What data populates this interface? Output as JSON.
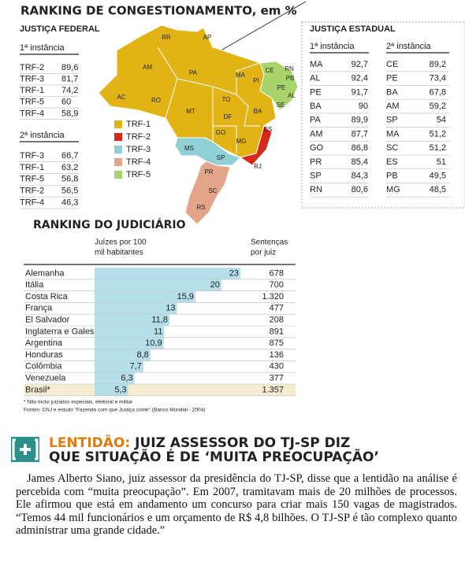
{
  "header": {
    "title": "RANKING DE CONGESTIONAMENTO, em %"
  },
  "federal": {
    "title": "JUSTIÇA FEDERAL",
    "tables": [
      {
        "heading": "1ª instância",
        "rows": [
          [
            "TRF-2",
            "89,6"
          ],
          [
            "TRF-3",
            "81,7"
          ],
          [
            "TRF-1",
            "74,2"
          ],
          [
            "TRF-5",
            "60"
          ],
          [
            "TRF-4",
            "58,9"
          ]
        ]
      },
      {
        "heading": "2ª instância",
        "rows": [
          [
            "TRF-3",
            "66,7"
          ],
          [
            "TRF-1",
            "63,2"
          ],
          [
            "TRF-5",
            "56,8"
          ],
          [
            "TRF-2",
            "56,5"
          ],
          [
            "TRF-4",
            "46,3"
          ]
        ]
      }
    ]
  },
  "map": {
    "legend": [
      {
        "label": "TRF-1",
        "color": "#e2b314"
      },
      {
        "label": "TRF-2",
        "color": "#d8281c"
      },
      {
        "label": "TRF-3",
        "color": "#8ed0d3"
      },
      {
        "label": "TRF-4",
        "color": "#e2a589"
      },
      {
        "label": "TRF-5",
        "color": "#a9d36b"
      }
    ],
    "states": [
      "RR",
      "AP",
      "AM",
      "PA",
      "MA",
      "CE",
      "RN",
      "PB",
      "PI",
      "PE",
      "AL",
      "SE",
      "AC",
      "RO",
      "TO",
      "BA",
      "MT",
      "GO",
      "DF",
      "MG",
      "MS",
      "ES",
      "RJ",
      "SP",
      "PR",
      "SC",
      "RS"
    ]
  },
  "estadual": {
    "title": "JUSTIÇA ESTADUAL",
    "tables": [
      {
        "heading": "1ª instância",
        "rows": [
          [
            "MA",
            "92,7"
          ],
          [
            "AL",
            "92,4"
          ],
          [
            "PE",
            "91,7"
          ],
          [
            "BA",
            "90"
          ],
          [
            "PA",
            "89,9"
          ],
          [
            "AM",
            "87,7"
          ],
          [
            "GO",
            "86,8"
          ],
          [
            "PR",
            "85,4"
          ],
          [
            "SP",
            "84,3"
          ],
          [
            "RN",
            "80,6"
          ]
        ]
      },
      {
        "heading": "2ª instância",
        "rows": [
          [
            "CE",
            "89,2"
          ],
          [
            "PE",
            "73,4"
          ],
          [
            "BA",
            "67,8"
          ],
          [
            "AM",
            "59,2"
          ],
          [
            "SP",
            "54"
          ],
          [
            "MA",
            "51,2"
          ],
          [
            "SC",
            "51,2"
          ],
          [
            "ES",
            "51"
          ],
          [
            "PB",
            "49,5"
          ],
          [
            "MG",
            "48,5"
          ]
        ]
      }
    ]
  },
  "chart_data": {
    "type": "bar",
    "orientation": "horizontal",
    "title": "RANKING DO JUDICIÁRIO",
    "value_title": [
      "Juízes por 100",
      "mil habitantes"
    ],
    "table_title": [
      "Sentenças",
      "por juiz"
    ],
    "categories": [
      "Alemanha",
      "Itália",
      "Costa Rica",
      "França",
      "El Salvador",
      "Inglaterra e Gales",
      "Argentina",
      "Honduras",
      "Colômbia",
      "Venezuela",
      "Brasil*"
    ],
    "values": [
      23,
      20,
      15.9,
      13,
      11.8,
      11,
      10.9,
      8.8,
      7.7,
      6.3,
      5.3
    ],
    "value_labels": [
      "23",
      "20",
      "15,9",
      "13",
      "11,8",
      "11",
      "10,9",
      "8,8",
      "7,7",
      "6,3",
      "5,3"
    ],
    "table_values": [
      "678",
      "700",
      "1.320",
      "477",
      "208",
      "891",
      "875",
      "136",
      "430",
      "377",
      "1.357"
    ],
    "color": "#b7dfe9",
    "highlight_color": "#f6ecd1"
  },
  "notes": [
    "* Não inclui juizados especiais, eleitoral e militar",
    "Fontes: CNJ e estudo \"Fazendo com que Justiça conte\" (Banco Mundial - 2004)"
  ],
  "article": {
    "kicker": "LENTIDÃO:",
    "headline": [
      "JUIZ ASSESSOR DO TJ-SP DIZ",
      "QUE SITUAÇÃO É DE ‘MUITA PREOCUPAÇÃO’"
    ],
    "body": "James Alberto Siano, juiz assessor da presidência do TJ-SP, disse que a lentidão na análise é percebida com “muita preocupação”. Em 2007, tramitavam mais de 20 milhões de processos. Ele afirmou que está em andamento um concurso para criar mais 150 vagas de magistrados. “Temos 44 mil funcionários e um orçamento de R$ 4,8 bilhões. O TJ-SP é tão complexo quanto administrar uma grande cidade.”"
  }
}
